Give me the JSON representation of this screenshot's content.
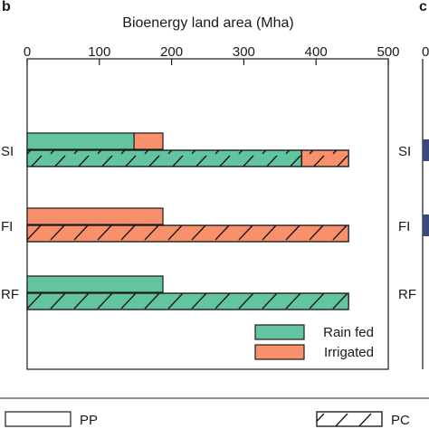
{
  "panel_letter": "b",
  "next_panel_letter": "c",
  "chart_data": {
    "type": "bar",
    "orientation": "horizontal",
    "stacked": true,
    "xlabel": "Bioenergy land area (Mha)",
    "xlim": [
      0,
      500
    ],
    "xticks": [
      "0",
      "100",
      "200",
      "300",
      "400",
      "500"
    ],
    "xtick_values": [
      0,
      100,
      200,
      300,
      400,
      500
    ],
    "categories": [
      "SI",
      "FI",
      "RF"
    ],
    "groups": [
      {
        "category": "SI",
        "bars": [
          {
            "pattern": "PP",
            "rain_fed": 148,
            "irrigated": 40
          },
          {
            "pattern": "PC",
            "rain_fed": 380,
            "irrigated": 65
          }
        ]
      },
      {
        "category": "FI",
        "bars": [
          {
            "pattern": "PP",
            "rain_fed": 0,
            "irrigated": 188
          },
          {
            "pattern": "PC",
            "rain_fed": 0,
            "irrigated": 445
          }
        ]
      },
      {
        "category": "RF",
        "bars": [
          {
            "pattern": "PP",
            "rain_fed": 188,
            "irrigated": 0
          },
          {
            "pattern": "PC",
            "rain_fed": 445,
            "irrigated": 0
          }
        ]
      }
    ],
    "series": [
      {
        "name": "Rain fed",
        "color": "#63c4a0"
      },
      {
        "name": "Irrigated",
        "color": "#f9906c"
      }
    ],
    "legend_position": "bottom-right",
    "patterns": [
      {
        "name": "PP",
        "fill": "plain"
      },
      {
        "name": "PC",
        "fill": "hatched"
      }
    ],
    "grid": false
  },
  "next_panel_ytick_labels": [
    "SI",
    "FI",
    "RF"
  ],
  "next_panel_xtick_partial": "0"
}
